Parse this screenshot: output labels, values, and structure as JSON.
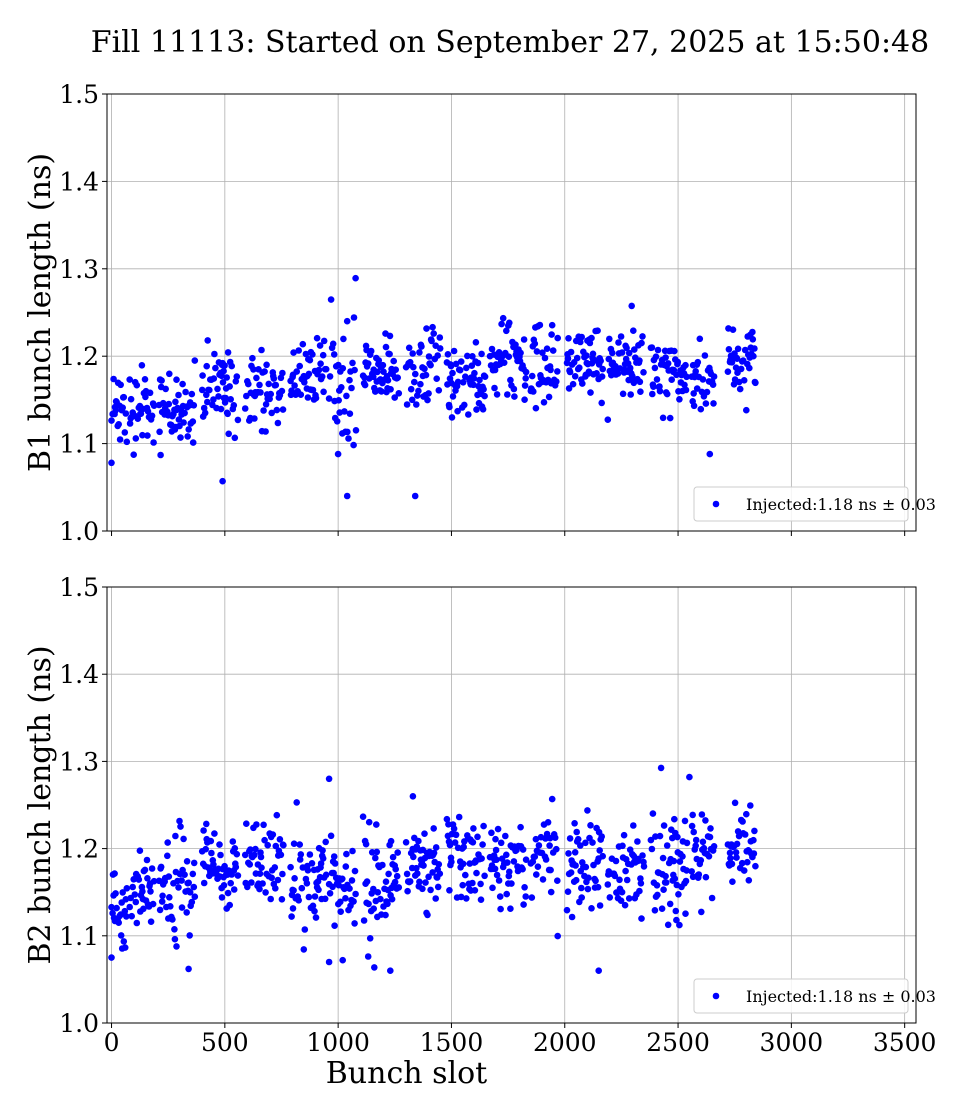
{
  "title": "Fill 11113: Started on September 27, 2025 at 15:50:48",
  "chart_data": [
    {
      "type": "scatter",
      "ylabel": "B1 bunch length (ns)",
      "xlabel": "",
      "xlim": [
        -20,
        3550
      ],
      "ylim": [
        1.0,
        1.5
      ],
      "xticks": [
        0,
        500,
        1000,
        1500,
        2000,
        2500,
        3000,
        3500
      ],
      "yticks": [
        1.0,
        1.1,
        1.2,
        1.3,
        1.4,
        1.5
      ],
      "xtick_labels_visible": false,
      "grid": true,
      "legend": "lower-right",
      "color": "#0000ff",
      "series": [
        {
          "name": "Injected:1.18 ns ± 0.03",
          "trains": [
            {
              "start": 0,
              "end": 70,
              "mean": 1.135,
              "spread": 0.028
            },
            {
              "start": 80,
              "end": 190,
              "mean": 1.145,
              "spread": 0.022
            },
            {
              "start": 210,
              "end": 370,
              "mean": 1.14,
              "spread": 0.022
            },
            {
              "start": 400,
              "end": 560,
              "mean": 1.16,
              "spread": 0.022
            },
            {
              "start": 590,
              "end": 760,
              "mean": 1.16,
              "spread": 0.02
            },
            {
              "start": 790,
              "end": 950,
              "mean": 1.18,
              "spread": 0.022
            },
            {
              "start": 960,
              "end": 1080,
              "mean": 1.175,
              "spread": 0.03
            },
            {
              "start": 1110,
              "end": 1270,
              "mean": 1.18,
              "spread": 0.022
            },
            {
              "start": 1300,
              "end": 1450,
              "mean": 1.185,
              "spread": 0.028
            },
            {
              "start": 1480,
              "end": 1650,
              "mean": 1.175,
              "spread": 0.02
            },
            {
              "start": 1670,
              "end": 1830,
              "mean": 1.19,
              "spread": 0.02
            },
            {
              "start": 1850,
              "end": 1970,
              "mean": 1.185,
              "spread": 0.028
            },
            {
              "start": 2010,
              "end": 2170,
              "mean": 1.195,
              "spread": 0.022
            },
            {
              "start": 2190,
              "end": 2350,
              "mean": 1.19,
              "spread": 0.022
            },
            {
              "start": 2380,
              "end": 2540,
              "mean": 1.18,
              "spread": 0.02
            },
            {
              "start": 2560,
              "end": 2660,
              "mean": 1.17,
              "spread": 0.02
            },
            {
              "start": 2720,
              "end": 2845,
              "mean": 1.19,
              "spread": 0.025
            }
          ],
          "outliers": [
            [
              490,
              1.057
            ],
            [
              1040,
              1.04
            ],
            [
              1340,
              1.04
            ],
            [
              2640,
              1.088
            ],
            [
              1000,
              1.088
            ],
            [
              0,
              1.078
            ],
            [
              1040,
              1.24
            ]
          ]
        }
      ]
    },
    {
      "type": "scatter",
      "ylabel": "B2 bunch length (ns)",
      "xlabel": "Bunch slot",
      "xlim": [
        -20,
        3550
      ],
      "ylim": [
        1.0,
        1.5
      ],
      "xticks": [
        0,
        500,
        1000,
        1500,
        2000,
        2500,
        3000,
        3500
      ],
      "yticks": [
        1.0,
        1.1,
        1.2,
        1.3,
        1.4,
        1.5
      ],
      "xtick_labels_visible": true,
      "grid": true,
      "legend": "lower-right",
      "color": "#0000ff",
      "series": [
        {
          "name": "Injected:1.18 ns ± 0.03",
          "trains": [
            {
              "start": 0,
              "end": 70,
              "mean": 1.13,
              "spread": 0.028
            },
            {
              "start": 80,
              "end": 190,
              "mean": 1.15,
              "spread": 0.02
            },
            {
              "start": 210,
              "end": 370,
              "mean": 1.155,
              "spread": 0.03
            },
            {
              "start": 400,
              "end": 560,
              "mean": 1.175,
              "spread": 0.022
            },
            {
              "start": 590,
              "end": 760,
              "mean": 1.185,
              "spread": 0.025
            },
            {
              "start": 790,
              "end": 950,
              "mean": 1.17,
              "spread": 0.03
            },
            {
              "start": 960,
              "end": 1080,
              "mean": 1.165,
              "spread": 0.03
            },
            {
              "start": 1110,
              "end": 1270,
              "mean": 1.165,
              "spread": 0.03
            },
            {
              "start": 1300,
              "end": 1450,
              "mean": 1.18,
              "spread": 0.028
            },
            {
              "start": 1480,
              "end": 1650,
              "mean": 1.19,
              "spread": 0.025
            },
            {
              "start": 1670,
              "end": 1830,
              "mean": 1.18,
              "spread": 0.022
            },
            {
              "start": 1850,
              "end": 1970,
              "mean": 1.19,
              "spread": 0.028
            },
            {
              "start": 2010,
              "end": 2170,
              "mean": 1.18,
              "spread": 0.028
            },
            {
              "start": 2190,
              "end": 2350,
              "mean": 1.175,
              "spread": 0.025
            },
            {
              "start": 2380,
              "end": 2540,
              "mean": 1.18,
              "spread": 0.032
            },
            {
              "start": 2560,
              "end": 2660,
              "mean": 1.185,
              "spread": 0.025
            },
            {
              "start": 2720,
              "end": 2845,
              "mean": 1.2,
              "spread": 0.022
            }
          ],
          "outliers": [
            [
              960,
              1.28
            ],
            [
              2550,
              1.282
            ],
            [
              340,
              1.062
            ],
            [
              1230,
              1.06
            ],
            [
              2150,
              1.06
            ],
            [
              960,
              1.07
            ],
            [
              1020,
              1.072
            ],
            [
              0,
              1.075
            ],
            [
              1330,
              1.26
            ]
          ]
        }
      ]
    }
  ]
}
